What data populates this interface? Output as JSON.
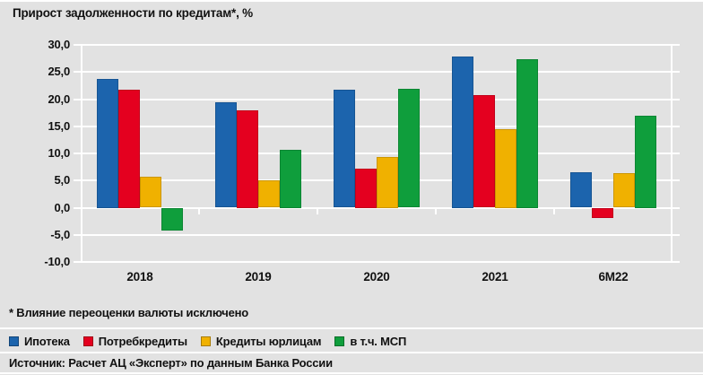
{
  "title": "Прирост задолженности по кредитам*, %",
  "footnote": "* Влияние переоценки валюты исключено",
  "source": "Источник: Расчет АЦ «Эксперт» по данным Банка России",
  "colors": {
    "background": "#e2e2e2",
    "grid": "#ffffff",
    "text": "#111111",
    "blue": "#1c64ad",
    "red": "#e4001f",
    "yellow": "#f0b100",
    "green": "#0f9e3c"
  },
  "chart_data": {
    "type": "bar",
    "title": "Прирост задолженности по кредитам*, %",
    "categories": [
      "2018",
      "2019",
      "2020",
      "2021",
      "6М22"
    ],
    "series": [
      {
        "name": "Ипотека",
        "color": "#1c64ad",
        "values": [
          23.8,
          19.4,
          21.7,
          27.9,
          6.5
        ]
      },
      {
        "name": "Потребкредиты",
        "color": "#e4001f",
        "values": [
          21.8,
          18.0,
          7.2,
          20.7,
          -1.8
        ]
      },
      {
        "name": "Кредиты юрлицам",
        "color": "#f0b100",
        "values": [
          5.7,
          5.0,
          9.4,
          14.5,
          6.3
        ]
      },
      {
        "name": "в т.ч. МСП",
        "color": "#0f9e3c",
        "values": [
          -4.2,
          10.7,
          21.9,
          27.4,
          17.0
        ]
      }
    ],
    "xlabel": "",
    "ylabel": "",
    "ylim": [
      -10,
      30
    ],
    "ytick_step": 5,
    "ytick_labels": [
      "30,0",
      "25,0",
      "20,0",
      "15,0",
      "10,0",
      "5,0",
      "0,0",
      "-5,0",
      "-10,0"
    ],
    "grid": true,
    "legend_position": "bottom"
  }
}
